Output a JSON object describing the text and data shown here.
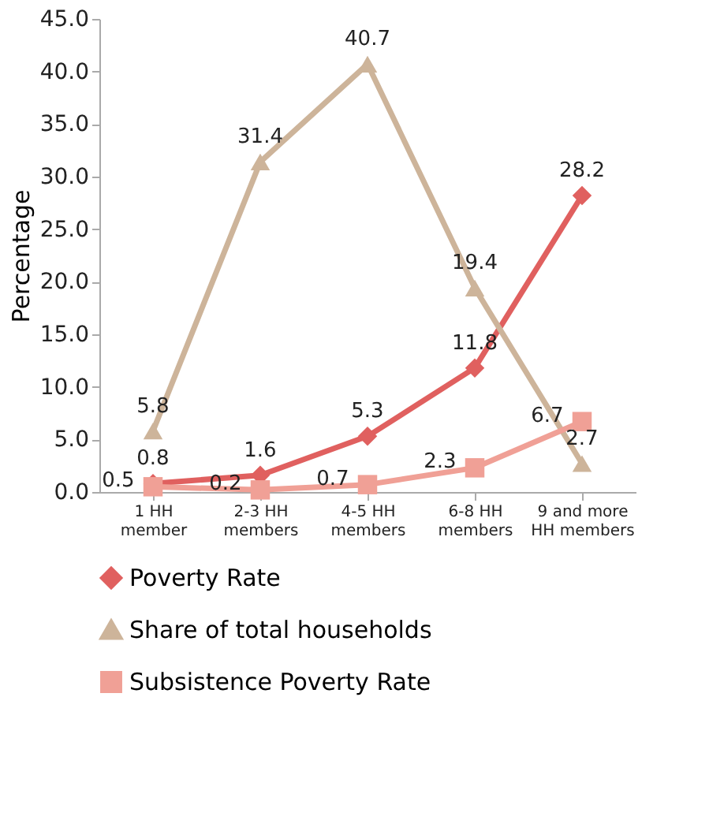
{
  "chart_data": {
    "type": "line",
    "ylabel": "Percentage",
    "categories": [
      "1 HH member",
      "2-3 HH members",
      "4-5 HH members",
      "6-8 HH members",
      "9 and more HH members"
    ],
    "series": [
      {
        "name": "Poverty Rate",
        "color": "#e0605f",
        "marker": "diamond",
        "values": [
          0.8,
          1.6,
          5.3,
          11.8,
          28.2
        ]
      },
      {
        "name": "Share of total households",
        "color": "#cdb49a",
        "marker": "triangle",
        "values": [
          5.8,
          31.4,
          40.7,
          19.4,
          2.7
        ]
      },
      {
        "name": "Subsistence Poverty Rate",
        "color": "#f0a096",
        "marker": "square",
        "values": [
          0.5,
          0.2,
          0.7,
          2.3,
          6.7
        ]
      }
    ],
    "ylim": [
      0,
      45
    ],
    "yticks": [
      {
        "value": 0,
        "label": "0.0"
      },
      {
        "value": 5,
        "label": "5.0"
      },
      {
        "value": 10,
        "label": "10.0"
      },
      {
        "value": 15,
        "label": "15.0"
      },
      {
        "value": 20,
        "label": "20.0"
      },
      {
        "value": 25,
        "label": "25.0"
      },
      {
        "value": 30,
        "label": "30.0"
      },
      {
        "value": 35,
        "label": "35.0"
      },
      {
        "value": 40,
        "label": "40.0"
      },
      {
        "value": 45,
        "label": "45.0"
      }
    ],
    "data_labels": true,
    "grid": false,
    "legend": "bottom",
    "line_style": "solid"
  }
}
